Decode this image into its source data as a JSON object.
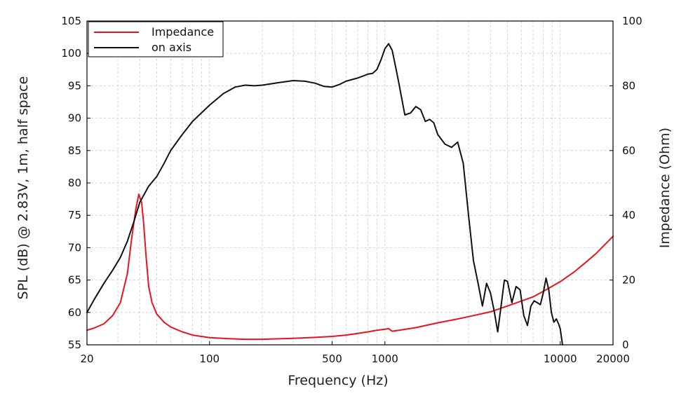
{
  "chart_data": {
    "type": "line",
    "title": "",
    "xlabel": "Frequency (Hz)",
    "ylabel": "SPL (dB) @ 2.83V, 1m, half space",
    "y2label": "Impedance (Ohm)",
    "xscale": "log",
    "xlim": [
      20,
      20000
    ],
    "ylim": [
      55,
      105
    ],
    "y2lim": [
      0,
      100
    ],
    "grid": true,
    "legend_position": "top-left",
    "x_ticks": [
      20,
      100,
      500,
      1000,
      10000,
      20000
    ],
    "x_tick_labels": [
      "20",
      "100",
      "500",
      "1000",
      "10000",
      "20000"
    ],
    "y_ticks": [
      55,
      60,
      65,
      70,
      75,
      80,
      85,
      90,
      95,
      100,
      105
    ],
    "y_tick_labels": [
      "55",
      "60",
      "65",
      "70",
      "75",
      "80",
      "85",
      "90",
      "95",
      "100",
      "105"
    ],
    "y2_ticks": [
      0,
      20,
      40,
      60,
      80,
      100
    ],
    "y2_tick_labels": [
      "0",
      "20",
      "40",
      "60",
      "80",
      "100"
    ],
    "series": [
      {
        "name": "Impedance",
        "axis": "right",
        "color": "#e8141c",
        "x": [
          20,
          22,
          25,
          28,
          31,
          34,
          36,
          38,
          39.5,
          41,
          42,
          43.5,
          45,
          47,
          50,
          55,
          60,
          70,
          80,
          100,
          130,
          160,
          200,
          300,
          400,
          500,
          600,
          700,
          800,
          900,
          1000,
          1050,
          1100,
          1200,
          1500,
          2000,
          2500,
          3000,
          4000,
          5000,
          6000,
          7000,
          8000,
          10000,
          12000,
          14000,
          16000,
          18000,
          20000
        ],
        "values": [
          4.5,
          5.2,
          6.5,
          9,
          13,
          22,
          33,
          42,
          46.5,
          44,
          38,
          27,
          18,
          13,
          9.5,
          7,
          5.5,
          4,
          3,
          2.2,
          1.9,
          1.7,
          1.7,
          2,
          2.3,
          2.6,
          3,
          3.5,
          4,
          4.5,
          4.8,
          5,
          4.2,
          4.5,
          5.3,
          6.8,
          7.8,
          8.7,
          10.2,
          12,
          13.5,
          14.8,
          16.5,
          19.5,
          22.5,
          25.5,
          28.2,
          31,
          33.5
        ]
      },
      {
        "name": "on axis",
        "axis": "left",
        "color": "#111111",
        "x": [
          20,
          22,
          25,
          28,
          31,
          34,
          37,
          40,
          45,
          50,
          55,
          60,
          70,
          80,
          100,
          120,
          140,
          160,
          180,
          200,
          250,
          300,
          350,
          400,
          450,
          500,
          550,
          600,
          700,
          750,
          800,
          850,
          900,
          950,
          1000,
          1050,
          1100,
          1150,
          1200,
          1300,
          1400,
          1500,
          1600,
          1700,
          1800,
          1900,
          2000,
          2200,
          2400,
          2600,
          2800,
          3000,
          3200,
          3400,
          3600,
          3800,
          4000,
          4200,
          4400,
          4600,
          4800,
          5000,
          5300,
          5600,
          5900,
          6200,
          6500,
          6800,
          7100,
          7400,
          7700,
          8000,
          8300,
          8600,
          8900,
          9200,
          9500,
          9800,
          10000,
          10300
        ],
        "values": [
          60,
          62,
          64.5,
          66.5,
          68.5,
          71,
          74,
          77,
          79.5,
          81,
          83,
          85,
          87.5,
          89.5,
          92,
          93.8,
          94.8,
          95.1,
          95.0,
          95.1,
          95.5,
          95.8,
          95.7,
          95.4,
          94.9,
          94.8,
          95.2,
          95.7,
          96.2,
          96.5,
          96.8,
          96.9,
          97.5,
          99,
          100.7,
          101.5,
          100.5,
          98,
          95.5,
          90.5,
          90.8,
          91.8,
          91.3,
          89.5,
          89.8,
          89.3,
          87.5,
          86,
          85.5,
          86.3,
          83,
          75,
          68,
          64.5,
          61,
          64.5,
          63,
          60.2,
          57,
          61,
          65,
          64.8,
          61.5,
          64,
          63.5,
          59.5,
          58,
          61,
          61.8,
          61.5,
          61.2,
          63,
          65.3,
          63.5,
          60,
          58.5,
          59,
          58.2,
          57.5,
          55
        ]
      }
    ]
  }
}
